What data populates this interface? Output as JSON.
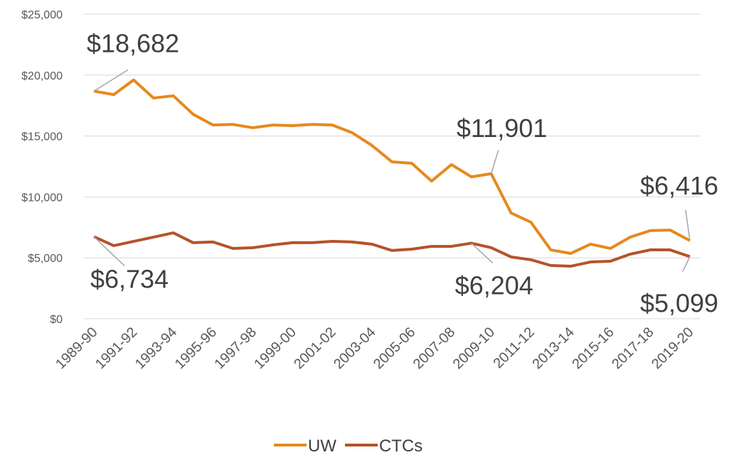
{
  "chart_data": {
    "type": "line",
    "categories": [
      "1989-90",
      null,
      "1991-92",
      null,
      "1993-94",
      null,
      "1995-96",
      null,
      "1997-98",
      null,
      "1999-00",
      null,
      "2001-02",
      null,
      "2003-04",
      null,
      "2005-06",
      null,
      "2007-08",
      null,
      "2009-10",
      null,
      "2011-12",
      null,
      "2013-14",
      null,
      "2015-16",
      null,
      "2017-18",
      null,
      "2019-20"
    ],
    "series": [
      {
        "name": "UW",
        "color": "#e6891e",
        "values": [
          18682,
          18400,
          19600,
          18120,
          18300,
          16780,
          15900,
          15950,
          15680,
          15900,
          15850,
          15950,
          15900,
          15270,
          14220,
          12880,
          12760,
          11300,
          12650,
          11650,
          11901,
          8680,
          7920,
          5650,
          5360,
          6120,
          5770,
          6700,
          7230,
          7280,
          6416
        ],
        "value_labels": [
          "$18,682",
          null,
          null,
          null,
          null,
          null,
          null,
          null,
          null,
          null,
          null,
          null,
          null,
          null,
          null,
          null,
          null,
          null,
          null,
          null,
          "$11,901",
          null,
          null,
          null,
          null,
          null,
          null,
          null,
          null,
          null,
          "$6,416"
        ]
      },
      {
        "name": "CTCs",
        "color": "#b5532a",
        "values": [
          6734,
          6000,
          6350,
          6700,
          7050,
          6240,
          6300,
          5770,
          5830,
          6060,
          6240,
          6240,
          6350,
          6300,
          6120,
          5600,
          5710,
          5940,
          5940,
          6204,
          5830,
          5070,
          4840,
          4370,
          4310,
          4660,
          4720,
          5300,
          5650,
          5650,
          5099
        ],
        "value_labels": [
          "$6,734",
          null,
          null,
          null,
          null,
          null,
          null,
          null,
          null,
          null,
          null,
          null,
          null,
          null,
          null,
          null,
          null,
          null,
          null,
          "$6,204",
          null,
          null,
          null,
          null,
          null,
          null,
          null,
          null,
          null,
          null,
          "$5,099"
        ]
      }
    ],
    "ylim": [
      0,
      25000
    ],
    "yticks": [
      {
        "value": 0,
        "label": "$0"
      },
      {
        "value": 5000,
        "label": "$5,000"
      },
      {
        "value": 10000,
        "label": "$10,000"
      },
      {
        "value": 15000,
        "label": "$15,000"
      },
      {
        "value": 20000,
        "label": "$20,000"
      },
      {
        "value": 25000,
        "label": "$25,000"
      }
    ],
    "grid": true,
    "legend": "bottom"
  }
}
